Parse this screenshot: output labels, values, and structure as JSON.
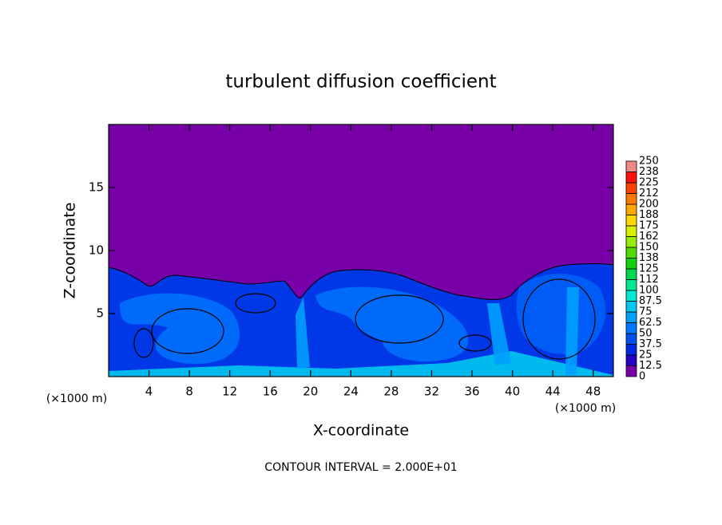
{
  "chart_data": {
    "type": "heatmap",
    "title": "turbulent diffusion coefficient",
    "x_label": "X-coordinate",
    "y_label": "Z-coordinate",
    "x_unit": "(×1000 m)",
    "y_unit": "(×1000 m)",
    "annotation": "CONTOUR INTERVAL = 2.000E+01",
    "xlim": [
      0,
      50
    ],
    "xticks": [
      4,
      8,
      12,
      16,
      20,
      24,
      28,
      32,
      36,
      40,
      44,
      48
    ],
    "ylim": [
      0,
      20
    ],
    "yticks": [
      5,
      10,
      15
    ],
    "colorbar": {
      "levels": [
        0,
        12.5,
        25,
        37.5,
        50,
        62.5,
        75,
        87.5,
        100,
        112,
        125,
        138,
        150,
        162,
        175,
        188,
        200,
        212,
        225,
        238,
        250
      ],
      "colors": [
        "#7800a8",
        "#2400c8",
        "#0028e0",
        "#0050f0",
        "#0078ff",
        "#00a0ff",
        "#00c8f0",
        "#00e8d0",
        "#00e890",
        "#00d850",
        "#10d010",
        "#50dc00",
        "#98ec00",
        "#d8f000",
        "#ffd800",
        "#ffa800",
        "#ff7800",
        "#ff4000",
        "#ff1010",
        "#f08888"
      ]
    }
  }
}
